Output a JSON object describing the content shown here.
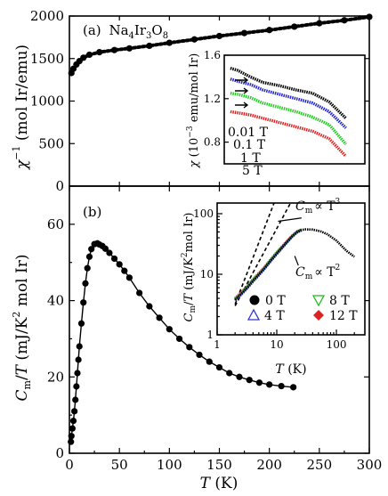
{
  "chart_data": [
    {
      "panel": "a",
      "type": "scatter",
      "panel_label": "(a)",
      "compound": {
        "Na": "Na",
        "n1": "4",
        "Ir": "Ir",
        "n2": "3",
        "O": "O",
        "n3": "8"
      },
      "ylabel": {
        "main": "χ",
        "sup": "−1",
        "unit": " (mol Ir/emu)"
      },
      "xlim": [
        0,
        300
      ],
      "ylim": [
        0,
        2000
      ],
      "yticks": [
        0,
        500,
        1000,
        1500,
        2000
      ],
      "color": "#000000",
      "series": [
        {
          "x": [
            2,
            4,
            7,
            10,
            14,
            20,
            30,
            45,
            60,
            80,
            100,
            125,
            150,
            175,
            200,
            225,
            250,
            275,
            300
          ],
          "y": [
            1330,
            1380,
            1430,
            1470,
            1510,
            1545,
            1575,
            1600,
            1620,
            1650,
            1685,
            1725,
            1765,
            1800,
            1835,
            1875,
            1915,
            1950,
            1990
          ]
        }
      ],
      "inset": {
        "type": "line",
        "ylabel": {
          "main": "χ",
          "unit1": " (10",
          "exp": "−3",
          "unit2": " emu/mol Ir)"
        },
        "xlim": [
          0,
          300
        ],
        "ylim": [
          0.6,
          1.6
        ],
        "yticks": [
          "0.8",
          "1.2",
          "1.6"
        ],
        "yticks_values": [
          0.8,
          1.2,
          1.6
        ],
        "x": [
          2,
          20,
          50,
          80,
          120,
          160,
          200,
          240,
          280
        ],
        "series": [
          {
            "name": "0.01 T",
            "color": "#000000",
            "values": [
              1.48,
              1.46,
              1.4,
              1.35,
              1.32,
              1.28,
              1.25,
              1.17,
              1.02
            ]
          },
          {
            "name": "0.1 T",
            "color": "#2222cc",
            "values": [
              1.38,
              1.36,
              1.33,
              1.28,
              1.24,
              1.2,
              1.16,
              1.08,
              0.93
            ]
          },
          {
            "name": "1 T",
            "color": "#22cc22",
            "values": [
              1.25,
              1.24,
              1.21,
              1.16,
              1.12,
              1.08,
              1.03,
              0.96,
              0.78
            ]
          },
          {
            "name": "5 T",
            "color": "#dd2222",
            "values": [
              1.08,
              1.07,
              1.05,
              1.02,
              0.98,
              0.94,
              0.9,
              0.83,
              0.67
            ]
          }
        ]
      }
    },
    {
      "panel": "b",
      "type": "scatter",
      "panel_label": "(b)",
      "ylabel": {
        "main": "C",
        "sub": "m",
        "mid": "/",
        "t": "T",
        "unit1": " (mJ/K",
        "exp": "2",
        "unit2": " mol Ir)"
      },
      "xlabel": {
        "main": "T",
        "unit": " (K)"
      },
      "xlim": [
        0,
        300
      ],
      "ylim": [
        0,
        70
      ],
      "xticks": [
        0,
        50,
        100,
        150,
        200,
        250,
        300
      ],
      "yticks": [
        0,
        20,
        40,
        60
      ],
      "color": "#000000",
      "series": [
        {
          "x": [
            1.5,
            2,
            3,
            4,
            5,
            6,
            7,
            8,
            9,
            10,
            12,
            14,
            16,
            18,
            20,
            22,
            25,
            28,
            30,
            33,
            36,
            40,
            45,
            50,
            55,
            60,
            70,
            80,
            90,
            100,
            110,
            120,
            130,
            140,
            150,
            160,
            170,
            180,
            190,
            200,
            212,
            224
          ],
          "y": [
            3,
            4.5,
            6.5,
            8.5,
            11,
            14,
            17.5,
            21,
            24.5,
            28,
            34,
            39.5,
            44.5,
            48.5,
            51.5,
            53.5,
            54.8,
            55,
            54.7,
            54.3,
            53.6,
            52.5,
            51,
            49.5,
            47.8,
            46,
            42,
            38.5,
            35.5,
            32.5,
            30,
            27.8,
            25.8,
            24,
            22.5,
            21,
            20,
            19.2,
            18.5,
            18,
            17.6,
            17.3
          ]
        }
      ],
      "inset": {
        "type": "line",
        "ylabel": {
          "main": "C",
          "sub": "m",
          "mid": "/",
          "t": "T",
          "unit1": " (mJ/K",
          "exp": "2",
          "unit2": "mol Ir)"
        },
        "xlabel": {
          "main": "T",
          "unit": " (K)"
        },
        "xscale": "log",
        "yscale": "log",
        "xlim": [
          1,
          300
        ],
        "ylim": [
          1,
          150
        ],
        "xticks": [
          "1",
          "10",
          "100"
        ],
        "xticks_values": [
          1,
          10,
          100
        ],
        "yticks": [
          "1",
          "10",
          "100"
        ],
        "yticks_values": [
          1,
          10,
          100
        ],
        "x": [
          2,
          3,
          4,
          6,
          8,
          10,
          14,
          18,
          22,
          26,
          30,
          40,
          55,
          70,
          100,
          150,
          200
        ],
        "series": [
          {
            "name": "0 T",
            "color": "#000000",
            "values": [
              3.8,
              5.6,
              7.8,
              12,
              17,
              22,
              32,
              42,
              50,
              54,
              55,
              54.7,
              51,
              46,
              36,
              24,
              19.5
            ]
          },
          {
            "name": "4 T",
            "color": "#3333cc",
            "values": [
              3.7,
              5.5,
              7.6,
              11.8,
              16.7,
              21.7,
              31.6,
              41.6,
              49.5,
              53.5
            ]
          },
          {
            "name": "8 T",
            "color": "#22bb22",
            "values": [
              3.9,
              5.8,
              8.0,
              12.3,
              17.4,
              22.5,
              32.5,
              42.5,
              50.5,
              54.2
            ]
          },
          {
            "name": "12 T",
            "color": "#dd2222",
            "values": [
              4.0,
              5.9,
              8.2,
              12.5,
              17.7,
              22.9,
              33,
              43,
              51,
              54.6
            ]
          }
        ],
        "annotations": [
          {
            "text": "∝ T",
            "exp": "3",
            "label": "C",
            "sub": "m"
          },
          {
            "text": "∝ T",
            "exp": "2",
            "label": "C",
            "sub": "m"
          }
        ]
      }
    }
  ]
}
